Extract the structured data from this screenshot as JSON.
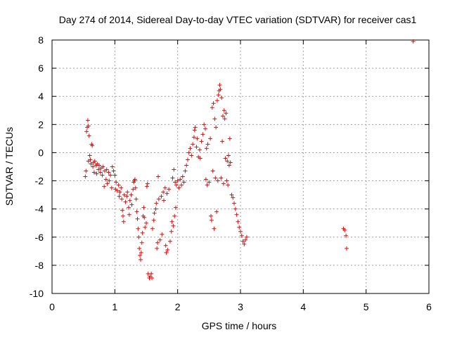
{
  "chart_data": {
    "type": "scatter",
    "title": "Day 274 of 2014, Sidereal Day-to-day VTEC variation (SDTVAR) for receiver cas1",
    "xlabel": "GPS time / hours",
    "ylabel": "SDTVAR / TECUs",
    "xlim": [
      0,
      6
    ],
    "ylim": [
      -10,
      8
    ],
    "xticks": [
      0,
      1,
      2,
      3,
      4,
      5,
      6
    ],
    "xtick_labels": [
      "0",
      "1",
      "2",
      "3",
      "4",
      "5",
      "6"
    ],
    "yticks": [
      -10,
      -8,
      -6,
      -4,
      -2,
      0,
      2,
      4,
      6,
      8
    ],
    "ytick_labels": [
      "-10",
      "-8",
      "-6",
      "-4",
      "-2",
      "0",
      "2",
      "4",
      "6",
      "8"
    ],
    "grid": true,
    "marker": "+",
    "color": "#ff0000",
    "series": [
      {
        "name": "cas1",
        "points": [
          [
            0.53,
            -1.7
          ],
          [
            0.54,
            -1.3
          ],
          [
            0.55,
            1.5
          ],
          [
            0.56,
            1.8
          ],
          [
            0.57,
            2.3
          ],
          [
            0.58,
            1.9
          ],
          [
            0.58,
            -0.6
          ],
          [
            0.59,
            1.2
          ],
          [
            0.6,
            -0.2
          ],
          [
            0.61,
            -0.5
          ],
          [
            0.62,
            -0.8
          ],
          [
            0.63,
            0.6
          ],
          [
            0.64,
            0.5
          ],
          [
            0.65,
            -1.0
          ],
          [
            0.66,
            -0.7
          ],
          [
            0.67,
            -1.4
          ],
          [
            0.68,
            -0.6
          ],
          [
            0.7,
            -0.9
          ],
          [
            0.71,
            -1.5
          ],
          [
            0.72,
            -0.8
          ],
          [
            0.74,
            -1.2
          ],
          [
            0.75,
            -0.9
          ],
          [
            0.77,
            -1.4
          ],
          [
            0.78,
            -1.1
          ],
          [
            0.8,
            -1.6
          ],
          [
            0.81,
            -1.0
          ],
          [
            0.83,
            -2.4
          ],
          [
            0.84,
            -1.3
          ],
          [
            0.86,
            -1.9
          ],
          [
            0.87,
            -1.2
          ],
          [
            0.88,
            -2.2
          ],
          [
            0.9,
            -1.4
          ],
          [
            0.91,
            -2.0
          ],
          [
            0.93,
            -1.6
          ],
          [
            0.95,
            -2.5
          ],
          [
            0.96,
            -1.0
          ],
          [
            0.98,
            -1.3
          ],
          [
            1.0,
            -1.6
          ],
          [
            1.01,
            -2.6
          ],
          [
            1.02,
            -2.1
          ],
          [
            1.04,
            -2.7
          ],
          [
            1.06,
            -2.3
          ],
          [
            1.07,
            -3.1
          ],
          [
            1.08,
            -2.8
          ],
          [
            1.1,
            -2.5
          ],
          [
            1.11,
            -3.3
          ],
          [
            1.12,
            -4.1
          ],
          [
            1.13,
            -4.5
          ],
          [
            1.14,
            -4.9
          ],
          [
            1.15,
            -3.0
          ],
          [
            1.17,
            -3.5
          ],
          [
            1.19,
            -3.1
          ],
          [
            1.2,
            -2.8
          ],
          [
            1.22,
            -3.9
          ],
          [
            1.23,
            -4.4
          ],
          [
            1.24,
            -3.4
          ],
          [
            1.26,
            -3.0
          ],
          [
            1.27,
            -3.7
          ],
          [
            1.29,
            -2.6
          ],
          [
            1.3,
            -2.1
          ],
          [
            1.31,
            -2.0
          ],
          [
            1.32,
            -1.9
          ],
          [
            1.33,
            -2.5
          ],
          [
            1.34,
            -3.3
          ],
          [
            1.35,
            -4.2
          ],
          [
            1.36,
            -4.7
          ],
          [
            1.37,
            -5.4
          ],
          [
            1.38,
            -6.0
          ],
          [
            1.39,
            -6.8
          ],
          [
            1.4,
            -7.3
          ],
          [
            1.41,
            -7.6
          ],
          [
            1.42,
            -7.1
          ],
          [
            1.43,
            -6.4
          ],
          [
            1.44,
            -5.7
          ],
          [
            1.45,
            -4.5
          ],
          [
            1.46,
            -3.9
          ],
          [
            1.47,
            -4.6
          ],
          [
            1.48,
            -5.3
          ],
          [
            1.5,
            -5.0
          ],
          [
            1.51,
            -2.4
          ],
          [
            1.52,
            -2.2
          ],
          [
            1.53,
            -8.6
          ],
          [
            1.55,
            -8.9
          ],
          [
            1.56,
            -8.8
          ],
          [
            1.58,
            -8.6
          ],
          [
            1.59,
            -8.9
          ],
          [
            1.6,
            -5.4
          ],
          [
            1.62,
            -4.8
          ],
          [
            1.63,
            -4.3
          ],
          [
            1.65,
            -4.0
          ],
          [
            1.66,
            -3.6
          ],
          [
            1.67,
            -6.8
          ],
          [
            1.68,
            -6.4
          ],
          [
            1.69,
            -1.7
          ],
          [
            1.7,
            -3.3
          ],
          [
            1.72,
            -6.2
          ],
          [
            1.74,
            -3.1
          ],
          [
            1.75,
            -5.8
          ],
          [
            1.77,
            -2.8
          ],
          [
            1.78,
            -3.4
          ],
          [
            1.8,
            -2.5
          ],
          [
            1.81,
            -6.6
          ],
          [
            1.82,
            -7.1
          ],
          [
            1.83,
            -2.9
          ],
          [
            1.84,
            -6.9
          ],
          [
            1.86,
            -2.6
          ],
          [
            1.88,
            -6.3
          ],
          [
            1.9,
            -5.6
          ],
          [
            1.91,
            -4.9
          ],
          [
            1.92,
            -1.8
          ],
          [
            1.93,
            -5.2
          ],
          [
            1.94,
            -1.2
          ],
          [
            1.95,
            -4.5
          ],
          [
            1.96,
            -2.1
          ],
          [
            1.97,
            -3.9
          ],
          [
            1.98,
            -2.3
          ],
          [
            2.0,
            -2.0
          ],
          [
            2.02,
            -2.5
          ],
          [
            2.04,
            -1.9
          ],
          [
            2.06,
            -2.3
          ],
          [
            2.08,
            -1.7
          ],
          [
            2.1,
            -2.1
          ],
          [
            2.12,
            -1.3
          ],
          [
            2.14,
            -0.9
          ],
          [
            2.16,
            -0.5
          ],
          [
            2.18,
            0.0
          ],
          [
            2.2,
            0.3
          ],
          [
            2.22,
            -0.2
          ],
          [
            2.24,
            0.6
          ],
          [
            2.26,
            1.1
          ],
          [
            2.27,
            1.6
          ],
          [
            2.28,
            1.8
          ],
          [
            2.3,
            0.4
          ],
          [
            2.31,
            1.0
          ],
          [
            2.33,
            -0.3
          ],
          [
            2.35,
            0.2
          ],
          [
            2.36,
            -0.4
          ],
          [
            2.38,
            0.8
          ],
          [
            2.4,
            1.3
          ],
          [
            2.42,
            2.0
          ],
          [
            2.44,
            1.7
          ],
          [
            2.45,
            -1.9
          ],
          [
            2.46,
            0.3
          ],
          [
            2.47,
            -2.3
          ],
          [
            2.48,
            0.6
          ],
          [
            2.5,
            -2.1
          ],
          [
            2.52,
            1.0
          ],
          [
            2.53,
            -4.5
          ],
          [
            2.54,
            -4.8
          ],
          [
            2.55,
            3.2
          ],
          [
            2.56,
            -1.3
          ],
          [
            2.57,
            3.5
          ],
          [
            2.58,
            -5.4
          ],
          [
            2.59,
            2.4
          ],
          [
            2.6,
            -1.8
          ],
          [
            2.61,
            1.8
          ],
          [
            2.62,
            -4.2
          ],
          [
            2.63,
            3.7
          ],
          [
            2.64,
            -2.0
          ],
          [
            2.65,
            4.1
          ],
          [
            2.66,
            4.4
          ],
          [
            2.67,
            4.8
          ],
          [
            2.68,
            4.5
          ],
          [
            2.69,
            -1.8
          ],
          [
            2.7,
            3.9
          ],
          [
            2.71,
            0.8
          ],
          [
            2.72,
            2.6
          ],
          [
            2.73,
            -2.2
          ],
          [
            2.74,
            3.0
          ],
          [
            2.75,
            2.4
          ],
          [
            2.76,
            -0.4
          ],
          [
            2.77,
            2.8
          ],
          [
            2.78,
            -2.0
          ],
          [
            2.79,
            -0.6
          ],
          [
            2.8,
            -2.3
          ],
          [
            2.81,
            -0.2
          ],
          [
            2.82,
            -0.9
          ],
          [
            2.83,
            1.0
          ],
          [
            2.84,
            -0.7
          ],
          [
            2.86,
            -3.0
          ],
          [
            2.88,
            -3.2
          ],
          [
            2.9,
            -3.6
          ],
          [
            2.92,
            -4.0
          ],
          [
            2.94,
            -4.4
          ],
          [
            2.96,
            -4.9
          ],
          [
            2.98,
            -5.3
          ],
          [
            3.0,
            -5.6
          ],
          [
            3.02,
            -5.9
          ],
          [
            3.04,
            -6.3
          ],
          [
            3.06,
            -6.5
          ],
          [
            3.08,
            -6.2
          ],
          [
            3.1,
            -6.0
          ],
          [
            4.64,
            -5.4
          ],
          [
            4.66,
            -5.5
          ],
          [
            4.68,
            -5.9
          ],
          [
            4.69,
            -6.8
          ],
          [
            5.75,
            7.9
          ]
        ]
      }
    ]
  }
}
